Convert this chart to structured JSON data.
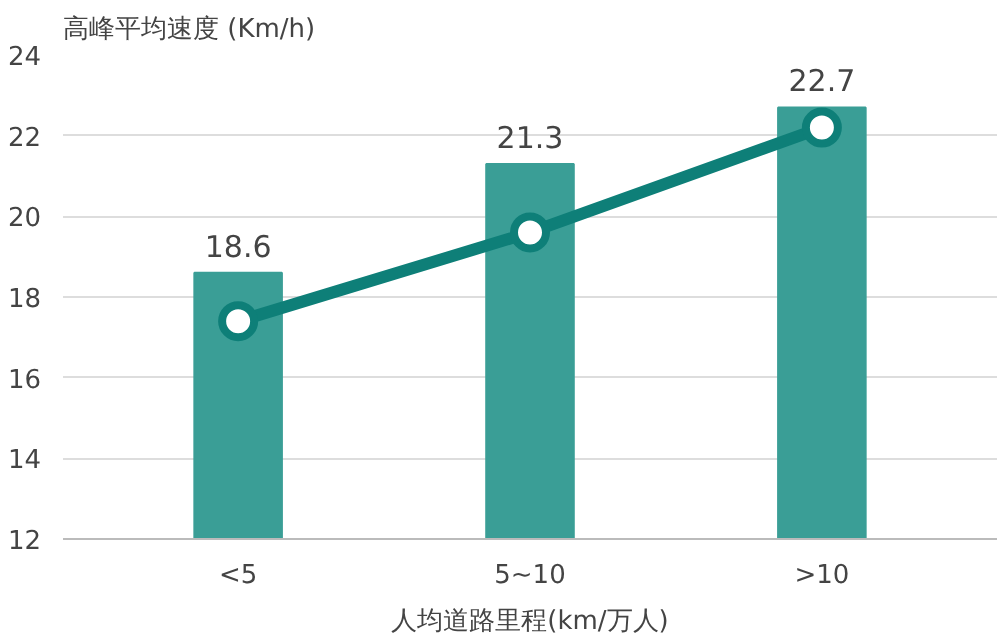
{
  "chart_data": {
    "type": "bar",
    "title": "高峰平均速度 (Km/h)",
    "xlabel": "人均道路里程(km/万人)",
    "categories": [
      "<5",
      "5~10",
      ">10"
    ],
    "series": [
      {
        "color": "#3a9e96",
        "values": [
          18.6,
          21.3,
          22.7
        ],
        "value_labels": [
          "18.6",
          "21.3",
          "22.7"
        ]
      },
      {
        "type": "line",
        "color": "#0e7f78",
        "values": [
          17.4,
          19.6,
          22.2
        ],
        "marker": "circle"
      }
    ],
    "ylim": [
      12,
      24
    ],
    "yticks": [
      12,
      14,
      16,
      18,
      20,
      22,
      24
    ],
    "grid": "y",
    "line_style": "solid"
  }
}
